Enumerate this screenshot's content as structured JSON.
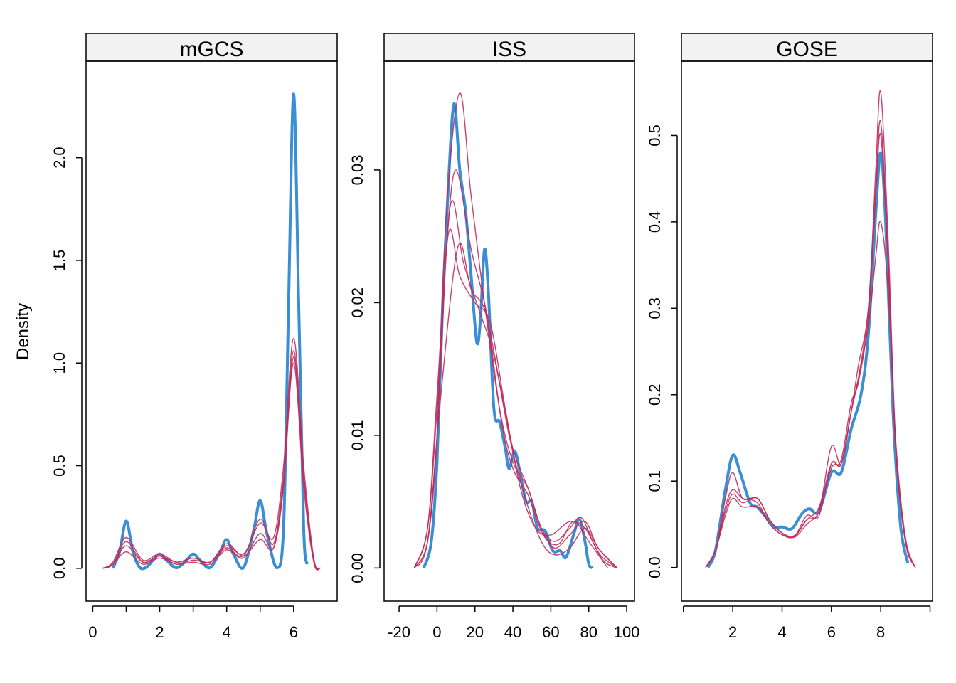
{
  "chart_data": {
    "type": "line",
    "ylabel": "Density",
    "colors": {
      "observed": "#3a8ed4",
      "imputed": "#c02c5c"
    },
    "panels": [
      {
        "title": "mGCS",
        "xlim": [
          -0.2,
          7.3
        ],
        "ylim": [
          -0.16,
          2.47
        ],
        "xticks": [
          0,
          1,
          2,
          3,
          4,
          5,
          6
        ],
        "xtick_labels": [
          "0",
          "",
          "2",
          "",
          "4",
          "",
          "6"
        ],
        "yticks": [
          0,
          0.5,
          1,
          1.5,
          2
        ],
        "ytick_labels": [
          "0.0",
          "0.5",
          "1.0",
          "1.5",
          "2.0"
        ],
        "observed": {
          "x": [
            0.6,
            0.8,
            1,
            1.2,
            1.4,
            1.6,
            1.8,
            2,
            2.2,
            2.5,
            2.8,
            3,
            3.2,
            3.5,
            3.8,
            4,
            4.2,
            4.5,
            4.8,
            5,
            5.2,
            5.5,
            5.7,
            5.85,
            6,
            6.15,
            6.3,
            6.4
          ],
          "y": [
            0,
            0.08,
            0.23,
            0.08,
            0.005,
            0.005,
            0.04,
            0.07,
            0.04,
            0.003,
            0.04,
            0.07,
            0.04,
            0.003,
            0.08,
            0.14,
            0.07,
            0.003,
            0.18,
            0.33,
            0.17,
            0.003,
            0.2,
            1.3,
            2.31,
            1.3,
            0.2,
            0.02
          ]
        },
        "imputed_x": [
          0.3,
          0.6,
          1,
          1.5,
          2,
          2.5,
          3,
          3.5,
          4,
          4.5,
          5,
          5.4,
          5.7,
          6,
          6.3,
          6.6,
          6.8
        ],
        "imputed": [
          [
            0,
            0.03,
            0.15,
            0.04,
            0.07,
            0.03,
            0.05,
            0.03,
            0.11,
            0.07,
            0.22,
            0.15,
            0.5,
            1.12,
            0.5,
            0.05,
            0
          ],
          [
            0,
            0.02,
            0.11,
            0.03,
            0.06,
            0.02,
            0.04,
            0.03,
            0.1,
            0.06,
            0.24,
            0.12,
            0.45,
            1.06,
            0.45,
            0.04,
            0
          ],
          [
            0,
            0.02,
            0.08,
            0.02,
            0.05,
            0.02,
            0.03,
            0.02,
            0.09,
            0.05,
            0.17,
            0.1,
            0.4,
            1.03,
            0.45,
            0.04,
            0
          ],
          [
            0,
            0.02,
            0.13,
            0.03,
            0.06,
            0.03,
            0.05,
            0.03,
            0.12,
            0.06,
            0.14,
            0.1,
            0.42,
            1.0,
            0.4,
            0.03,
            0
          ]
        ]
      },
      {
        "title": "ISS",
        "xlim": [
          -27.9,
          104.1
        ],
        "ylim": [
          -0.0025,
          0.0382
        ],
        "xticks": [
          -20,
          0,
          20,
          40,
          60,
          80,
          100
        ],
        "xtick_labels": [
          "-20",
          "0",
          "20",
          "40",
          "60",
          "80",
          "100"
        ],
        "yticks": [
          0,
          0.01,
          0.02,
          0.03
        ],
        "ytick_labels": [
          "0.00",
          "0.01",
          "0.02",
          "0.03"
        ],
        "observed": {
          "x": [
            -7,
            -3,
            0,
            3,
            6,
            9,
            12,
            15,
            18,
            21,
            23,
            25,
            27,
            30,
            33,
            36,
            38,
            41,
            44,
            47,
            50,
            53,
            57,
            61,
            65,
            68,
            72,
            75,
            78,
            80,
            82
          ],
          "y": [
            0,
            0.002,
            0.008,
            0.02,
            0.029,
            0.035,
            0.03,
            0.027,
            0.022,
            0.017,
            0.019,
            0.024,
            0.021,
            0.012,
            0.011,
            0.009,
            0.0075,
            0.0088,
            0.007,
            0.005,
            0.005,
            0.003,
            0.0028,
            0.0013,
            0.0013,
            0.0008,
            0.0025,
            0.0037,
            0.002,
            0.0003,
            0
          ]
        },
        "imputed_series": [
          {
            "x": [
              -12,
              -5,
              0,
              5,
              12,
              18,
              25,
              33,
              40,
              48,
              55,
              62,
              70,
              76,
              82,
              88,
              95
            ],
            "y": [
              0,
              0.002,
              0.01,
              0.027,
              0.0358,
              0.028,
              0.02,
              0.012,
              0.008,
              0.006,
              0.003,
              0.002,
              0.003,
              0.0038,
              0.002,
              0.0005,
              0
            ]
          },
          {
            "x": [
              -12,
              -5,
              0,
              5,
              10,
              18,
              25,
              33,
              40,
              48,
              55,
              62,
              70,
              78,
              85,
              95
            ],
            "y": [
              0,
              0.002,
              0.01,
              0.024,
              0.03,
              0.024,
              0.02,
              0.014,
              0.009,
              0.006,
              0.003,
              0.0015,
              0.0025,
              0.0035,
              0.0015,
              0
            ]
          },
          {
            "x": [
              -12,
              -5,
              0,
              7,
              14,
              22,
              30,
              38,
              46,
              55,
              62,
              70,
              78,
              85,
              95
            ],
            "y": [
              0,
              0.003,
              0.012,
              0.0273,
              0.023,
              0.0195,
              0.016,
              0.01,
              0.0055,
              0.002,
              0.001,
              0.0015,
              0.003,
              0.0015,
              0
            ]
          },
          {
            "x": [
              -12,
              -5,
              0,
              6,
              12,
              20,
              28,
              36,
              44,
              52,
              60,
              70,
              78,
              86,
              95
            ],
            "y": [
              0,
              0.003,
              0.013,
              0.0252,
              0.022,
              0.02,
              0.0185,
              0.012,
              0.006,
              0.003,
              0.0025,
              0.0035,
              0.003,
              0.001,
              0
            ]
          },
          {
            "x": [
              -12,
              -5,
              2,
              11,
              18,
              26,
              34,
              40,
              48,
              56,
              64,
              72,
              80,
              90
            ],
            "y": [
              0,
              0.002,
              0.013,
              0.0242,
              0.021,
              0.019,
              0.011,
              0.0075,
              0.0055,
              0.0025,
              0.0018,
              0.0035,
              0.002,
              0
            ]
          }
        ]
      },
      {
        "title": "GOSE",
        "xlim": [
          -0.08,
          10.1
        ],
        "ylim": [
          -0.039,
          0.586
        ],
        "xticks": [
          0,
          2,
          4,
          6,
          8,
          10
        ],
        "xtick_labels": [
          "",
          "2",
          "4",
          "6",
          "8",
          ""
        ],
        "yticks": [
          0,
          0.1,
          0.2,
          0.3,
          0.4,
          0.5
        ],
        "ytick_labels": [
          "0.0",
          "0.1",
          "0.2",
          "0.3",
          "0.4",
          "0.5"
        ],
        "observed": {
          "x": [
            1,
            1.3,
            1.7,
            2,
            2.3,
            2.7,
            3,
            3.3,
            3.7,
            4,
            4.4,
            4.8,
            5.1,
            5.5,
            6,
            6.4,
            6.8,
            7.2,
            7.5,
            7.8,
            8,
            8.2,
            8.5,
            8.8,
            9.1
          ],
          "y": [
            0,
            0.02,
            0.09,
            0.13,
            0.11,
            0.075,
            0.07,
            0.06,
            0.047,
            0.047,
            0.045,
            0.062,
            0.068,
            0.065,
            0.11,
            0.11,
            0.16,
            0.2,
            0.27,
            0.41,
            0.48,
            0.4,
            0.18,
            0.05,
            0.005
          ]
        },
        "imputed_x": [
          0.9,
          1.3,
          1.7,
          2,
          2.4,
          3,
          3.5,
          4,
          4.5,
          5,
          5.5,
          6,
          6.4,
          6.8,
          7.1,
          7.5,
          7.8,
          8,
          8.3,
          8.6,
          9,
          9.4
        ],
        "imputed": [
          [
            0,
            0.02,
            0.08,
            0.11,
            0.08,
            0.08,
            0.055,
            0.04,
            0.037,
            0.055,
            0.065,
            0.14,
            0.12,
            0.18,
            0.235,
            0.3,
            0.46,
            0.55,
            0.38,
            0.15,
            0.03,
            0
          ],
          [
            0,
            0.02,
            0.07,
            0.09,
            0.08,
            0.075,
            0.05,
            0.038,
            0.036,
            0.06,
            0.06,
            0.12,
            0.12,
            0.18,
            0.22,
            0.3,
            0.44,
            0.515,
            0.36,
            0.14,
            0.03,
            0
          ],
          [
            0,
            0.02,
            0.065,
            0.085,
            0.075,
            0.08,
            0.055,
            0.04,
            0.035,
            0.05,
            0.065,
            0.115,
            0.125,
            0.19,
            0.215,
            0.29,
            0.43,
            0.5,
            0.35,
            0.14,
            0.03,
            0
          ],
          [
            0,
            0.02,
            0.06,
            0.08,
            0.07,
            0.07,
            0.05,
            0.038,
            0.036,
            0.055,
            0.07,
            0.12,
            0.12,
            0.18,
            0.22,
            0.28,
            0.36,
            0.4,
            0.32,
            0.15,
            0.035,
            0
          ]
        ]
      }
    ]
  }
}
